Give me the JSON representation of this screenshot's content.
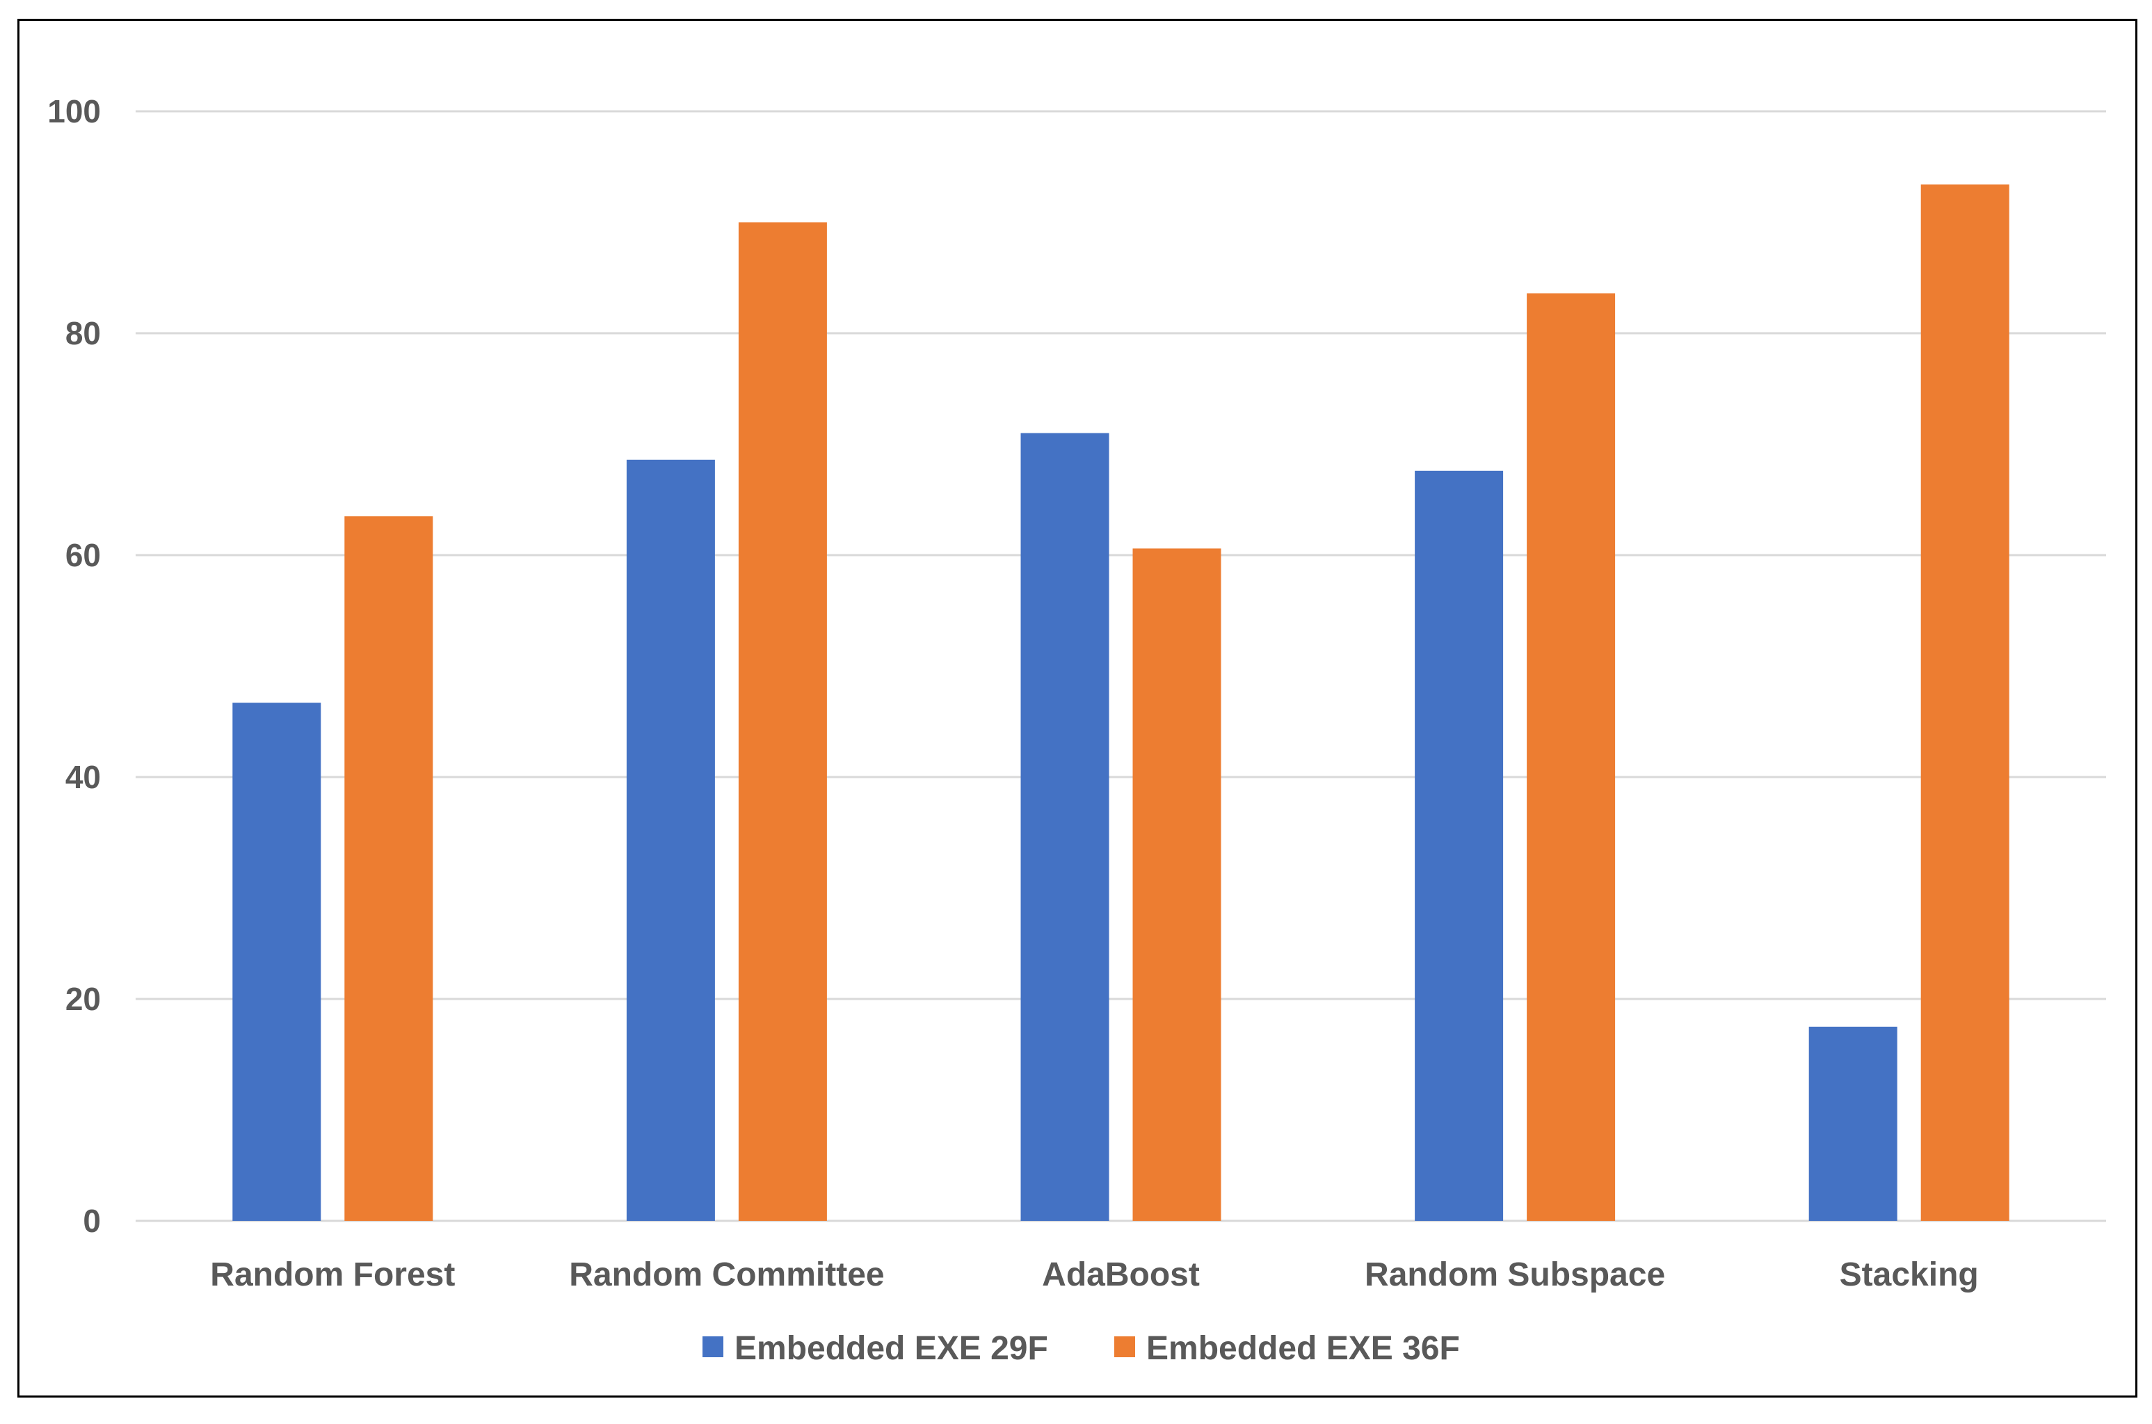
{
  "chart_data": {
    "type": "bar",
    "categories": [
      "Random Forest",
      "Random Committee",
      "AdaBoost",
      "Random Subspace",
      "Stacking"
    ],
    "series": [
      {
        "name": "Embedded EXE 29F",
        "color": "#4472c4",
        "values": [
          46.7,
          68.6,
          71.0,
          67.6,
          17.5
        ]
      },
      {
        "name": "Embedded EXE 36F",
        "color": "#ed7d31",
        "values": [
          63.5,
          90.0,
          60.6,
          83.6,
          93.4
        ]
      }
    ],
    "title": "",
    "xlabel": "",
    "ylabel": "",
    "ylim": [
      0,
      100
    ],
    "yticks": [
      0,
      20,
      40,
      60,
      80,
      100
    ],
    "grid": true,
    "legend_position": "bottom"
  }
}
